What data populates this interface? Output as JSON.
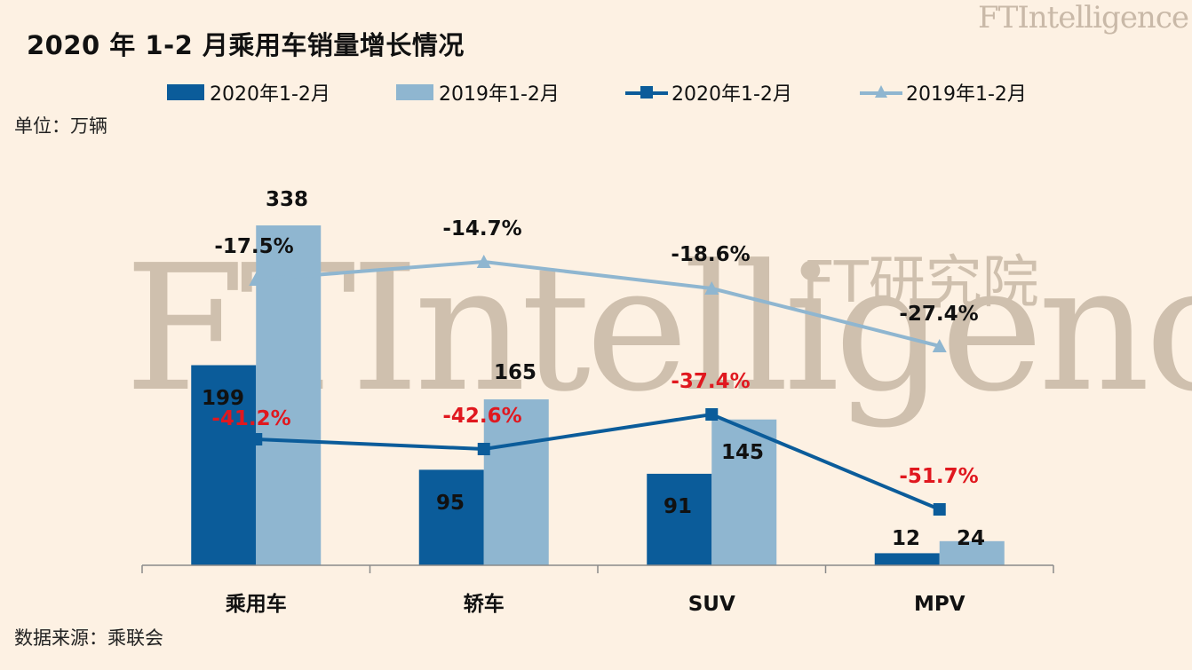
{
  "page": {
    "title": "2020 年 1-2 月乘用车销量增长情况",
    "unit": "单位：万辆",
    "source": "数据来源：乘联会",
    "brand": "FTIntelligence",
    "brand_sub": "FT研究院",
    "watermark": "FTIntelligence",
    "watermark_sub": "FT研究院"
  },
  "legend": [
    {
      "label": "2020年1-2月",
      "kind": "bar",
      "color": "#0b5c9a"
    },
    {
      "label": "2019年1-2月",
      "kind": "bar",
      "color": "#8fb6d0"
    },
    {
      "label": "2020年1-2月",
      "kind": "line-square",
      "color": "#0b5c9a"
    },
    {
      "label": "2019年1-2月",
      "kind": "line-triangle",
      "color": "#8fb6d0"
    }
  ],
  "chart_data": {
    "type": "bar",
    "title": "2020 年 1-2 月乘用车销量增长情况",
    "ylabel": "单位：万辆",
    "categories": [
      "乘用车",
      "轿车",
      "SUV",
      "MPV"
    ],
    "series": [
      {
        "name": "2020年1-2月",
        "type": "bar",
        "values": [
          199,
          95,
          91,
          12
        ],
        "color": "#0b5c9a"
      },
      {
        "name": "2019年1-2月",
        "type": "bar",
        "values": [
          338,
          165,
          145,
          24
        ],
        "color": "#8fb6d0"
      },
      {
        "name": "2020年1-2月",
        "type": "line",
        "marker": "square",
        "labels": [
          "-41.2%",
          "-42.6%",
          "-37.4%",
          "-51.7%"
        ],
        "color": "#0b5c9a",
        "label_color": "#e0181f"
      },
      {
        "name": "2019年1-2月",
        "type": "line",
        "marker": "triangle",
        "labels": [
          "-17.5%",
          "-14.7%",
          "-18.6%",
          "-27.4%"
        ],
        "color": "#8fb6d0",
        "label_color": "#111111"
      }
    ],
    "ylim": [
      0,
      360
    ],
    "grid": false,
    "legend_position": "top"
  }
}
